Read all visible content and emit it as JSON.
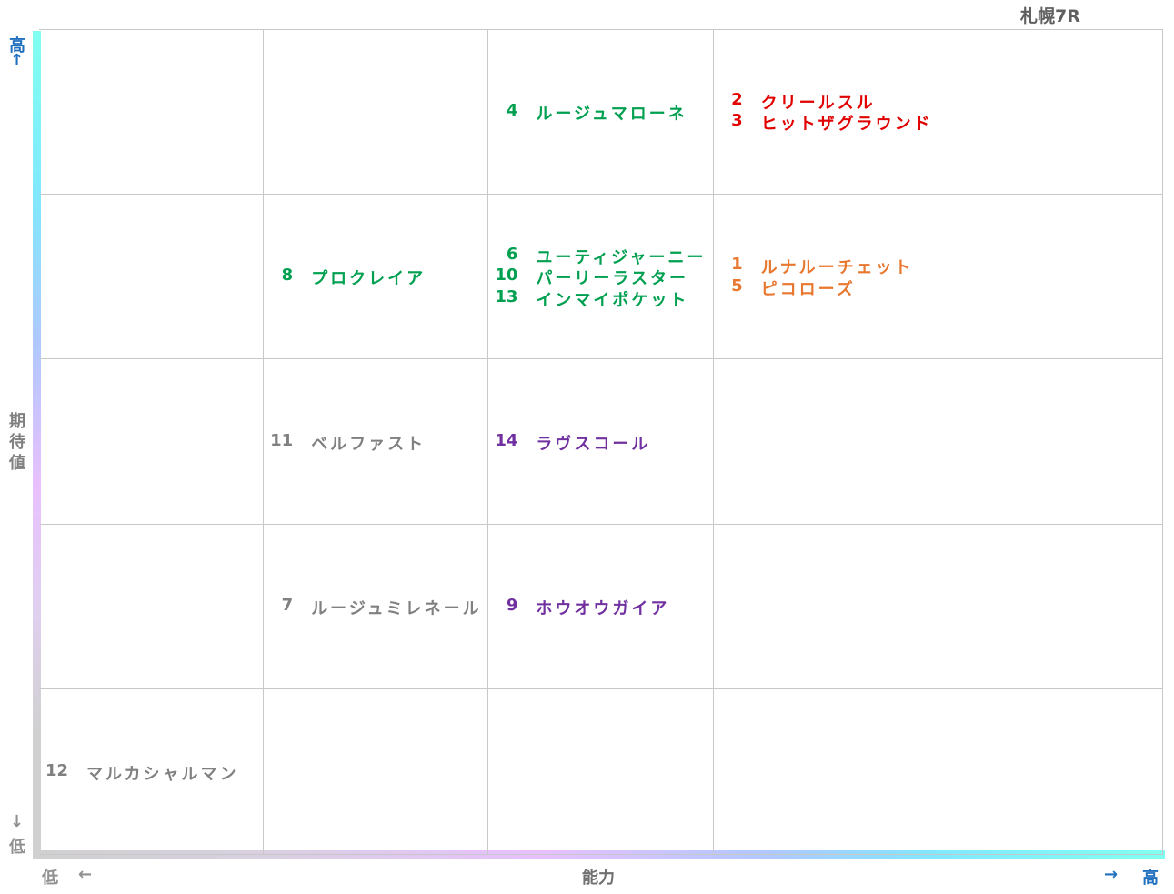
{
  "title": "札幌7R",
  "y_axis": {
    "label": "期待値",
    "high": "高",
    "up_arrow": "↑",
    "down_arrow": "↓",
    "low": "低"
  },
  "x_axis": {
    "label": "能力",
    "low": "低",
    "left_arrow": "←",
    "right_arrow": "→",
    "high": "高"
  },
  "grid": {
    "rows": [
      [
        {
          "entries": []
        },
        {
          "entries": []
        },
        {
          "color": "#00a050",
          "entries": [
            {
              "number": "4",
              "name": "ルージュマローネ"
            }
          ]
        },
        {
          "color": "#e00000",
          "entries": [
            {
              "number": "2",
              "name": "クリールスル"
            },
            {
              "number": "3",
              "name": "ヒットザグラウンド"
            }
          ]
        },
        {
          "entries": []
        }
      ],
      [
        {
          "entries": []
        },
        {
          "color": "#00a050",
          "entries": [
            {
              "number": "8",
              "name": "プロクレイア"
            }
          ]
        },
        {
          "color": "#00a050",
          "entries": [
            {
              "number": "6",
              "name": "ユーティジャーニー"
            },
            {
              "number": "10",
              "name": "パーリーラスター"
            },
            {
              "number": "13",
              "name": "インマイポケット"
            }
          ]
        },
        {
          "color": "#e87830",
          "entries": [
            {
              "number": "1",
              "name": "ルナルーチェット"
            },
            {
              "number": "5",
              "name": "ピコローズ"
            }
          ]
        },
        {
          "entries": []
        }
      ],
      [
        {
          "entries": []
        },
        {
          "color": "#808080",
          "entries": [
            {
              "number": "11",
              "name": "ベルファスト"
            }
          ]
        },
        {
          "color": "#7030a0",
          "entries": [
            {
              "number": "14",
              "name": "ラヴスコール"
            }
          ]
        },
        {
          "entries": []
        },
        {
          "entries": []
        }
      ],
      [
        {
          "entries": []
        },
        {
          "color": "#808080",
          "entries": [
            {
              "number": "7",
              "name": "ルージュミレネール"
            }
          ]
        },
        {
          "color": "#7030a0",
          "entries": [
            {
              "number": "9",
              "name": "ホウオウガイア"
            }
          ]
        },
        {
          "entries": []
        },
        {
          "entries": []
        }
      ],
      [
        {
          "color": "#808080",
          "entries": [
            {
              "number": "12",
              "name": "マルカシャルマン"
            }
          ]
        },
        {
          "entries": []
        },
        {
          "entries": []
        },
        {
          "entries": []
        },
        {
          "entries": []
        }
      ]
    ]
  }
}
